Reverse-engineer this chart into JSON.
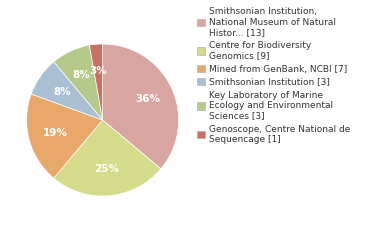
{
  "labels": [
    "Smithsonian Institution,\nNational Museum of Natural\nHistor... [13]",
    "Centre for Biodiversity\nGenomics [9]",
    "Mined from GenBank, NCBI [7]",
    "Smithsonian Institution [3]",
    "Key Laboratory of Marine\nEcology and Environmental\nSciences [3]",
    "Genoscope, Centre National de\nSequencage [1]"
  ],
  "values": [
    13,
    9,
    7,
    3,
    3,
    1
  ],
  "colors": [
    "#d9a5a0",
    "#d4dc8a",
    "#e8a86a",
    "#a8bfd4",
    "#b5ca8a",
    "#c97060"
  ],
  "startangle": 90,
  "background_color": "#ffffff",
  "fontsize": 7.5,
  "legend_fontsize": 6.5
}
